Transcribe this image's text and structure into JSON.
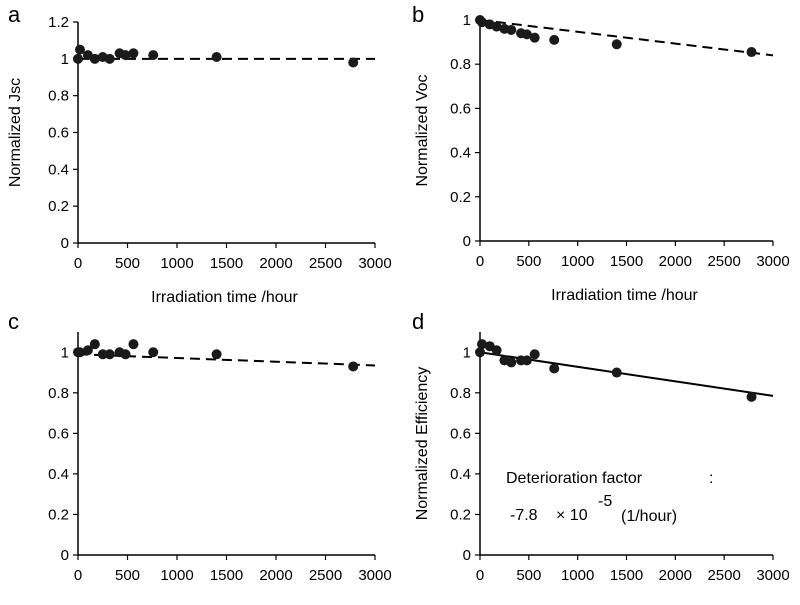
{
  "chart_data": [
    {
      "type": "scatter",
      "panel": "a",
      "xlabel": "Irradiation time /hour",
      "ylabel": "Normalized Jsc",
      "xlim": [
        0,
        3000
      ],
      "ylim": [
        0,
        1.2
      ],
      "xticks": [
        "0",
        "500",
        "1000",
        "1500",
        "2000",
        "2500",
        "3000"
      ],
      "yticks": [
        "0",
        "0.2",
        "0.4",
        "0.6",
        "0.8",
        "1",
        "1.2"
      ],
      "grid": false,
      "series": [
        {
          "x": [
            0,
            20,
            100,
            170,
            250,
            320,
            420,
            480,
            560,
            760,
            1400,
            2780
          ],
          "y": [
            1.0,
            1.05,
            1.02,
            1.0,
            1.01,
            1.0,
            1.03,
            1.02,
            1.03,
            1.02,
            1.01,
            0.98
          ]
        }
      ],
      "trend": {
        "style": "dashed",
        "x": [
          0,
          3000
        ],
        "y": [
          1.0,
          1.0
        ]
      },
      "annotations": []
    },
    {
      "type": "scatter",
      "panel": "b",
      "xlabel": "Irradiation time /hour",
      "ylabel": "Normalized Voc",
      "xlim": [
        0,
        3000
      ],
      "ylim": [
        0,
        1
      ],
      "xticks": [
        "0",
        "500",
        "1000",
        "1500",
        "2000",
        "2500",
        "3000"
      ],
      "yticks": [
        "0",
        "0.2",
        "0.4",
        "0.6",
        "0.8",
        "1"
      ],
      "grid": false,
      "series": [
        {
          "x": [
            0,
            20,
            100,
            170,
            250,
            320,
            420,
            480,
            560,
            760,
            1400,
            2780
          ],
          "y": [
            1.0,
            0.99,
            0.98,
            0.97,
            0.96,
            0.955,
            0.94,
            0.935,
            0.92,
            0.91,
            0.89,
            0.855
          ]
        }
      ],
      "trend": {
        "style": "dashed",
        "x": [
          0,
          3000
        ],
        "y": [
          1.0,
          0.84
        ]
      },
      "annotations": []
    },
    {
      "type": "scatter",
      "panel": "c",
      "xlabel": "",
      "ylabel": "",
      "xlim": [
        0,
        3000
      ],
      "ylim": [
        0,
        1.1
      ],
      "xticks": [
        "0",
        "500",
        "1000",
        "1500",
        "2000",
        "2500",
        "3000"
      ],
      "yticks": [
        "0",
        "0.2",
        "0.4",
        "0.6",
        "0.8",
        "1"
      ],
      "grid": false,
      "series": [
        {
          "x": [
            0,
            20,
            100,
            170,
            250,
            320,
            420,
            480,
            560,
            760,
            1400,
            2780
          ],
          "y": [
            1.0,
            1.0,
            1.01,
            1.04,
            0.99,
            0.99,
            1.0,
            0.99,
            1.04,
            1.0,
            0.99,
            0.93
          ]
        }
      ],
      "trend": {
        "style": "dashed",
        "x": [
          0,
          3000
        ],
        "y": [
          0.99,
          0.935
        ]
      },
      "annotations": []
    },
    {
      "type": "scatter",
      "panel": "d",
      "xlabel": "",
      "ylabel": "Normalized Efficiency",
      "xlim": [
        0,
        3000
      ],
      "ylim": [
        0,
        1.1
      ],
      "xticks": [
        "0",
        "500",
        "1000",
        "1500",
        "2000",
        "2500",
        "3000"
      ],
      "yticks": [
        "0",
        "0.2",
        "0.4",
        "0.6",
        "0.8",
        "1"
      ],
      "grid": false,
      "series": [
        {
          "x": [
            0,
            20,
            100,
            170,
            250,
            320,
            420,
            480,
            560,
            760,
            1400,
            2780
          ],
          "y": [
            1.0,
            1.04,
            1.03,
            1.01,
            0.96,
            0.95,
            0.96,
            0.96,
            0.99,
            0.92,
            0.9,
            0.78
          ]
        }
      ],
      "trend": {
        "style": "solid",
        "x": [
          0,
          3000
        ],
        "y": [
          1.0,
          0.785
        ]
      },
      "annotations": [
        {
          "text": "Deterioration factor"
        },
        {
          "text": ":"
        },
        {
          "text": "-7.8"
        },
        {
          "text": "× 10"
        },
        {
          "text": "-5"
        },
        {
          "text": "(1/hour)"
        }
      ]
    }
  ]
}
